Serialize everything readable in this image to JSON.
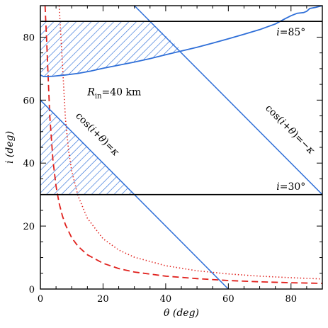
{
  "chart_data": {
    "type": "line",
    "xlabel": "θ (deg)",
    "ylabel": "i (deg)",
    "xlim": [
      0,
      90
    ],
    "ylim": [
      0,
      90
    ],
    "xticks": [
      0,
      20,
      40,
      60,
      80
    ],
    "yticks": [
      0,
      20,
      40,
      60,
      80
    ],
    "grid": false,
    "colors": {
      "blue": "#2f6fd8",
      "red": "#e0201c",
      "black": "#000000"
    },
    "horizontal_lines": [
      {
        "label": "i=85°",
        "y": 85
      },
      {
        "label": "i=30°",
        "y": 30
      }
    ],
    "blue_lines": [
      {
        "label": "cos(i+θ)=κ",
        "x": [
          0,
          60
        ],
        "y": [
          60,
          0
        ]
      },
      {
        "label": "cos(i+θ)=−κ",
        "x": [
          30,
          90
        ],
        "y": [
          90,
          30
        ]
      }
    ],
    "rin_curve": {
      "label": "R_in=40 km",
      "x": [
        0,
        1,
        2,
        4,
        8,
        12,
        16,
        20,
        25,
        30,
        35,
        40,
        45,
        50,
        55,
        60,
        65,
        70,
        75,
        78,
        80,
        82,
        84,
        85,
        86,
        87,
        88,
        90
      ],
      "y": [
        68,
        67.5,
        67.5,
        67.6,
        68,
        68.5,
        69.2,
        70.1,
        71.1,
        72.1,
        73.2,
        74.4,
        75.6,
        76.8,
        78.1,
        79.5,
        80.9,
        82.4,
        84.2,
        85.8,
        86.8,
        87.6,
        87.8,
        88.2,
        89.1,
        89.3,
        89.5,
        90
      ]
    },
    "red_dashed": {
      "x": [
        1.5,
        2,
        3,
        4,
        5,
        6,
        7,
        8,
        10,
        12,
        15,
        20,
        25,
        30,
        40,
        50,
        60,
        70,
        80,
        90
      ],
      "y": [
        90,
        79.1,
        54.9,
        41.0,
        32.7,
        27.2,
        23.3,
        20.4,
        16.3,
        13.6,
        10.9,
        8.2,
        6.5,
        5.4,
        4.1,
        3.3,
        2.7,
        2.3,
        2.0,
        1.8
      ]
    },
    "red_dotted": {
      "x": [
        6,
        7,
        8,
        9,
        10,
        12,
        15,
        20,
        25,
        30,
        40,
        50,
        60,
        70,
        80,
        90
      ],
      "y": [
        90,
        72.0,
        54.0,
        44.0,
        37.5,
        29.6,
        22.5,
        16.0,
        12.4,
        10.1,
        7.4,
        5.8,
        4.8,
        4.1,
        3.6,
        3.2
      ]
    },
    "hatched_regions": [
      {
        "name": "upper",
        "polygon": [
          [
            0,
            68
          ],
          [
            2,
            67.5
          ],
          [
            8,
            68
          ],
          [
            16,
            69.2
          ],
          [
            25,
            71.1
          ],
          [
            35,
            73.2
          ],
          [
            45,
            75.6
          ],
          [
            45.4,
            75.6
          ],
          [
            35,
            85
          ],
          [
            0,
            85
          ]
        ]
      },
      {
        "name": "lower",
        "polygon": [
          [
            0,
            60
          ],
          [
            30,
            30
          ],
          [
            0,
            30
          ]
        ]
      }
    ]
  }
}
